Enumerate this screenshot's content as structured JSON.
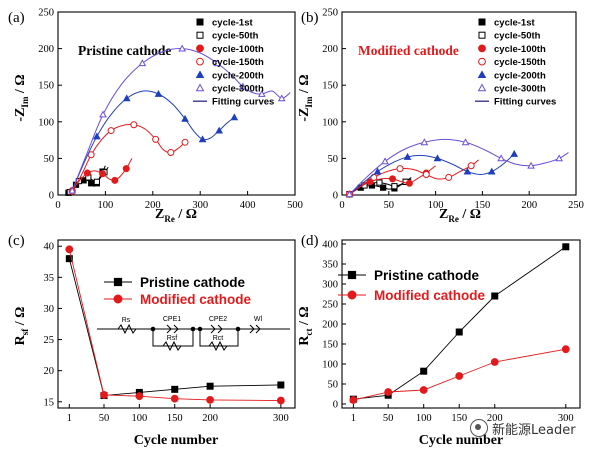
{
  "chart_data": [
    {
      "panel": "(a)",
      "type": "scatter",
      "title": "Pristine cathode",
      "xlabel": "Z_Re / Ω",
      "ylabel": "-Z_Im / Ω",
      "xlim": [
        0,
        500
      ],
      "ylim": [
        0,
        250
      ],
      "xticks": [
        0,
        100,
        200,
        300,
        400,
        500
      ],
      "yticks": [
        0,
        50,
        100,
        150,
        200,
        250
      ],
      "legend_position": "top-right",
      "title_color": "#000000",
      "series": [
        {
          "name": "cycle-1st",
          "marker": "square-filled",
          "color": "#000000",
          "points": [
            [
              22,
              3
            ],
            [
              30,
              9
            ],
            [
              38,
              14
            ],
            [
              46,
              18
            ],
            [
              54,
              20
            ],
            [
              62,
              20
            ],
            [
              70,
              16
            ],
            [
              76,
              12
            ],
            [
              82,
              16
            ],
            [
              88,
              24
            ],
            [
              94,
              32
            ],
            [
              100,
              40
            ]
          ]
        },
        {
          "name": "cycle-50th",
          "marker": "square-open",
          "color": "#000000",
          "points": [
            [
              25,
              4
            ],
            [
              34,
              12
            ],
            [
              44,
              19
            ],
            [
              54,
              23
            ],
            [
              64,
              24
            ],
            [
              74,
              20
            ],
            [
              82,
              18
            ],
            [
              90,
              24
            ],
            [
              98,
              31
            ],
            [
              106,
              38
            ]
          ]
        },
        {
          "name": "cycle-100th",
          "marker": "circle-filled",
          "color": "#e31a1c",
          "points": [
            [
              30,
              6
            ],
            [
              46,
              20
            ],
            [
              62,
              30
            ],
            [
              78,
              33
            ],
            [
              94,
              29
            ],
            [
              108,
              22
            ],
            [
              120,
              20
            ],
            [
              132,
              26
            ],
            [
              144,
              36
            ],
            [
              156,
              50
            ]
          ]
        },
        {
          "name": "cycle-150th",
          "marker": "circle-open",
          "color": "#e31a1c",
          "points": [
            [
              30,
              5
            ],
            [
              50,
              28
            ],
            [
              70,
              55
            ],
            [
              90,
              74
            ],
            [
              112,
              88
            ],
            [
              136,
              95
            ],
            [
              160,
              96
            ],
            [
              184,
              90
            ],
            [
              206,
              76
            ],
            [
              222,
              62
            ],
            [
              238,
              58
            ],
            [
              254,
              64
            ],
            [
              268,
              72
            ]
          ]
        },
        {
          "name": "cycle-200th",
          "marker": "triangle-filled",
          "color": "#1f3fbf",
          "points": [
            [
              30,
              6
            ],
            [
              55,
              44
            ],
            [
              82,
              80
            ],
            [
              112,
              110
            ],
            [
              145,
              132
            ],
            [
              180,
              142
            ],
            [
              212,
              138
            ],
            [
              242,
              124
            ],
            [
              268,
              104
            ],
            [
              288,
              86
            ],
            [
              305,
              76
            ],
            [
              322,
              78
            ],
            [
              340,
              88
            ],
            [
              356,
              98
            ],
            [
              372,
              106
            ]
          ]
        },
        {
          "name": "cycle-300th",
          "marker": "triangle-open",
          "color": "#6b4fd8",
          "points": [
            [
              30,
              6
            ],
            [
              60,
              55
            ],
            [
              95,
              110
            ],
            [
              135,
              152
            ],
            [
              178,
              180
            ],
            [
              222,
              196
            ],
            [
              262,
              200
            ],
            [
              300,
              194
            ],
            [
              336,
              180
            ],
            [
              366,
              164
            ],
            [
              390,
              148
            ],
            [
              410,
              140
            ],
            [
              430,
              138
            ],
            [
              452,
              142
            ],
            [
              472,
              132
            ],
            [
              490,
              140
            ]
          ]
        }
      ],
      "fit_label": "Fitting curves"
    },
    {
      "panel": "(b)",
      "type": "scatter",
      "title": "Modified cathode",
      "xlabel": "Z_Re / Ω",
      "ylabel": "-Z_Im / Ω",
      "xlim": [
        0,
        250
      ],
      "ylim": [
        0,
        250
      ],
      "xticks": [
        0,
        50,
        100,
        150,
        200,
        250
      ],
      "yticks": [
        0,
        50,
        100,
        150,
        200,
        250
      ],
      "legend_position": "top-right",
      "title_color": "#e31a1c",
      "series": [
        {
          "name": "cycle-1st",
          "marker": "square-filled",
          "color": "#000000",
          "points": [
            [
              8,
              1
            ],
            [
              14,
              6
            ],
            [
              20,
              10
            ],
            [
              26,
              12
            ],
            [
              32,
              13
            ],
            [
              38,
              12
            ],
            [
              44,
              10
            ],
            [
              50,
              8
            ],
            [
              56,
              9
            ],
            [
              62,
              13
            ],
            [
              68,
              18
            ],
            [
              74,
              24
            ]
          ]
        },
        {
          "name": "cycle-50th",
          "marker": "square-open",
          "color": "#000000",
          "points": [
            [
              8,
              1
            ],
            [
              16,
              8
            ],
            [
              24,
              13
            ],
            [
              32,
              16
            ],
            [
              40,
              17
            ],
            [
              48,
              15
            ],
            [
              56,
              12
            ],
            [
              62,
              14
            ],
            [
              68,
              18
            ],
            [
              74,
              22
            ]
          ]
        },
        {
          "name": "cycle-100th",
          "marker": "circle-filled",
          "color": "#e31a1c",
          "points": [
            [
              8,
              1
            ],
            [
              18,
              10
            ],
            [
              30,
              18
            ],
            [
              42,
              22
            ],
            [
              54,
              22
            ],
            [
              64,
              18
            ],
            [
              72,
              16
            ],
            [
              80,
              22
            ],
            [
              90,
              30
            ],
            [
              100,
              40
            ]
          ]
        },
        {
          "name": "cycle-150th",
          "marker": "circle-open",
          "color": "#e31a1c",
          "points": [
            [
              8,
              1
            ],
            [
              20,
              12
            ],
            [
              34,
              24
            ],
            [
              48,
              32
            ],
            [
              62,
              36
            ],
            [
              76,
              35
            ],
            [
              90,
              28
            ],
            [
              102,
              22
            ],
            [
              114,
              24
            ],
            [
              126,
              32
            ],
            [
              138,
              40
            ],
            [
              146,
              48
            ]
          ]
        },
        {
          "name": "cycle-200th",
          "marker": "triangle-filled",
          "color": "#1f3fbf",
          "points": [
            [
              8,
              1
            ],
            [
              22,
              16
            ],
            [
              38,
              32
            ],
            [
              54,
              44
            ],
            [
              70,
              52
            ],
            [
              86,
              54
            ],
            [
              102,
              50
            ],
            [
              118,
              42
            ],
            [
              134,
              32
            ],
            [
              148,
              28
            ],
            [
              160,
              32
            ],
            [
              172,
              42
            ],
            [
              184,
              56
            ]
          ]
        },
        {
          "name": "cycle-300th",
          "marker": "triangle-open",
          "color": "#6b4fd8",
          "points": [
            [
              8,
              1
            ],
            [
              26,
              24
            ],
            [
              46,
              46
            ],
            [
              66,
              62
            ],
            [
              88,
              72
            ],
            [
              110,
              76
            ],
            [
              132,
              72
            ],
            [
              152,
              62
            ],
            [
              170,
              50
            ],
            [
              186,
              42
            ],
            [
              202,
              40
            ],
            [
              218,
              44
            ],
            [
              232,
              50
            ],
            [
              242,
              58
            ]
          ]
        }
      ],
      "fit_label": "Fitting curves"
    },
    {
      "panel": "(c)",
      "type": "line",
      "xlabel": "Cycle number",
      "ylabel": "R_sf / Ω",
      "xlim": [
        -15,
        320
      ],
      "ylim": [
        14,
        41
      ],
      "xticks": [
        1,
        50,
        100,
        150,
        200,
        300
      ],
      "yticks": [
        15,
        20,
        25,
        30,
        35,
        40
      ],
      "legend_position": "upper-right",
      "x": [
        1,
        50,
        100,
        150,
        200,
        300
      ],
      "series": [
        {
          "name": "Pristine cathode",
          "marker": "square-filled",
          "color": "#000000",
          "values": [
            38,
            16,
            16.5,
            17,
            17.5,
            17.7
          ]
        },
        {
          "name": "Modified cathode",
          "marker": "circle-filled",
          "color": "#e31a1c",
          "values": [
            39.5,
            16.1,
            15.9,
            15.5,
            15.3,
            15.2
          ]
        }
      ],
      "circuit": {
        "labels": [
          "Rs",
          "CPE1",
          "CPE2",
          "Wl",
          "Rsf",
          "Rct"
        ]
      }
    },
    {
      "panel": "(d)",
      "type": "line",
      "xlabel": "Cycle number",
      "ylabel": "R_ct / Ω",
      "xlim": [
        -15,
        320
      ],
      "ylim": [
        -10,
        410
      ],
      "xticks": [
        1,
        50,
        100,
        150,
        200,
        300
      ],
      "yticks": [
        0,
        50,
        100,
        150,
        200,
        250,
        300,
        350,
        400
      ],
      "legend_position": "upper-left",
      "x": [
        1,
        50,
        100,
        150,
        200,
        300
      ],
      "series": [
        {
          "name": "Pristine cathode",
          "marker": "square-filled",
          "color": "#000000",
          "values": [
            12,
            22,
            82,
            180,
            270,
            393
          ]
        },
        {
          "name": "Modified cathode",
          "marker": "circle-filled",
          "color": "#e31a1c",
          "values": [
            10,
            30,
            35,
            70,
            105,
            137
          ]
        }
      ]
    }
  ],
  "watermark": {
    "text": "新能源Leader",
    "icon": "wechat-icon"
  }
}
